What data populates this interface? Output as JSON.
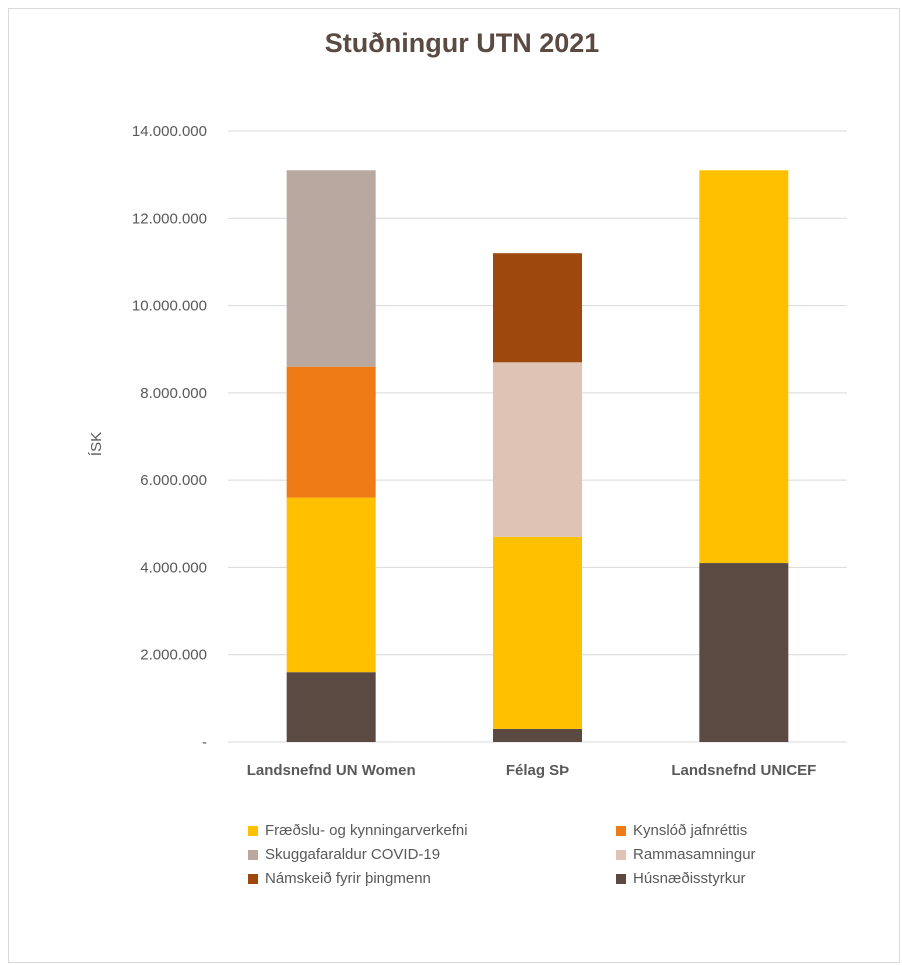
{
  "chart_data": {
    "type": "bar",
    "stacked": true,
    "title": "Stuðningur UTN 2021",
    "xlabel": "",
    "ylabel": "ÍSK",
    "ylim": [
      0,
      14000000
    ],
    "yticks": [
      0,
      2000000,
      4000000,
      6000000,
      8000000,
      10000000,
      12000000,
      14000000
    ],
    "ytick_labels": [
      "-",
      "2.000.000",
      "4.000.000",
      "6.000.000",
      "8.000.000",
      "10.000.000",
      "12.000.000",
      "14.000.000"
    ],
    "categories": [
      "Landsnefnd UN Women",
      "Félag SÞ",
      "Landsnefnd UNICEF"
    ],
    "grid": true,
    "legend_position": "bottom",
    "series": [
      {
        "name": "Húsnæðisstyrkur",
        "color": "#5b4a42",
        "values": [
          1600000,
          300000,
          4100000
        ]
      },
      {
        "name": "Fræðslu- og kynningarverkefni",
        "color": "#ffc000",
        "values": [
          4000000,
          4400000,
          9000000
        ]
      },
      {
        "name": "Kynslóð jafnréttis",
        "color": "#ee7b16",
        "values": [
          3000000,
          0,
          0
        ]
      },
      {
        "name": "Skuggafaraldur COVID-19",
        "color": "#b9a8a0",
        "values": [
          4500000,
          0,
          0
        ]
      },
      {
        "name": "Rammasamningur",
        "color": "#dfc3b5",
        "values": [
          0,
          4000000,
          0
        ]
      },
      {
        "name": "Námskeið fyrir þingmenn",
        "color": "#9e480e",
        "values": [
          0,
          2500000,
          0
        ]
      }
    ],
    "legend_order": [
      "Fræðslu- og kynningarverkefni",
      "Kynslóð jafnréttis",
      "Skuggafaraldur COVID-19",
      "Rammasamningur",
      "Námskeið fyrir þingmenn",
      "Húsnæðisstyrkur"
    ]
  }
}
